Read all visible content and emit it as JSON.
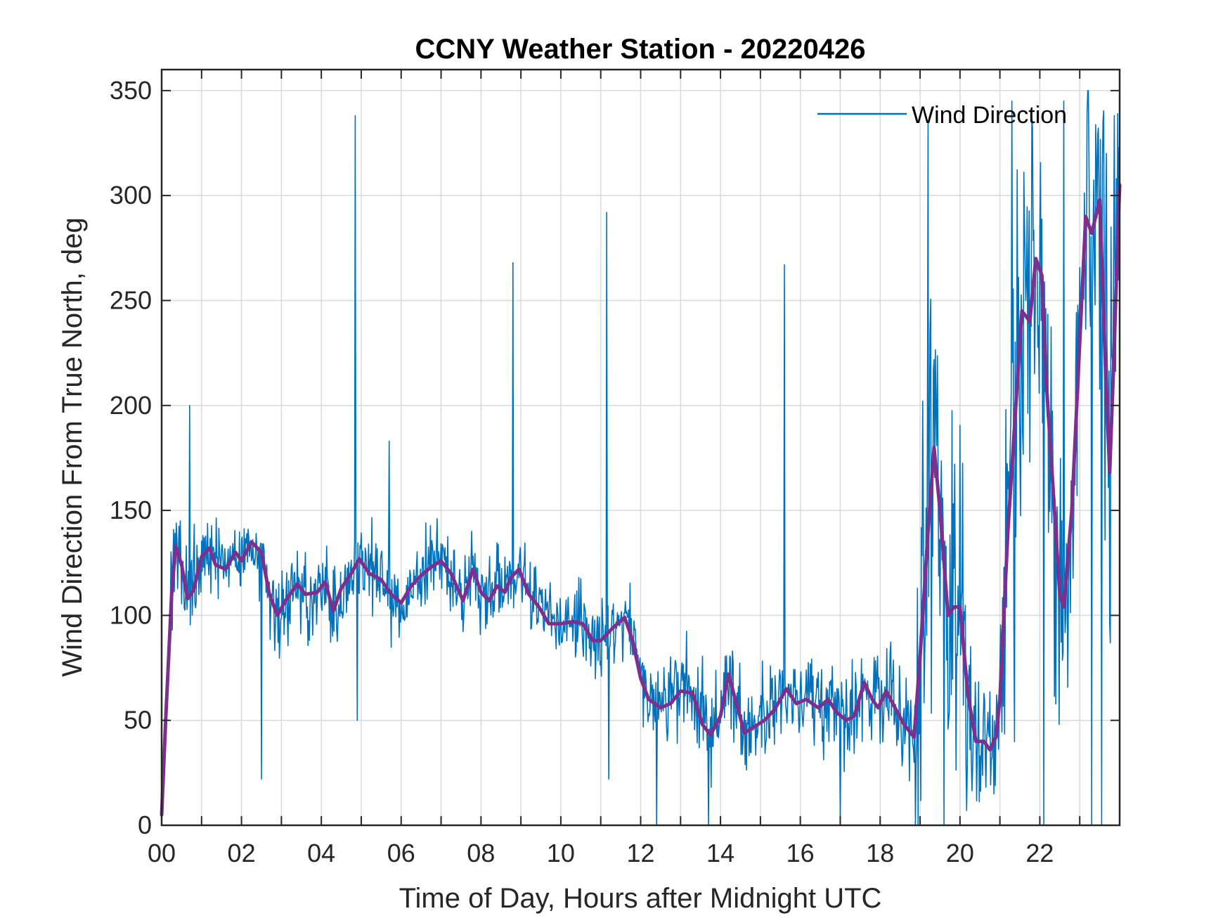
{
  "chart_data": {
    "type": "line",
    "title": "CCNY Weather Station - 20220426",
    "xlabel": "Time of Day, Hours after Midnight UTC",
    "ylabel": "Wind Direction From True North, deg",
    "xlim": [
      0,
      24
    ],
    "ylim": [
      0,
      360
    ],
    "grid": true,
    "legend_position": "top-right",
    "colors": {
      "raw": "#0072BD",
      "smoothed": "#7E2F8E",
      "axis": "#262626",
      "grid": "#d9d9d9"
    },
    "x_ticks": [
      0,
      2,
      4,
      6,
      8,
      10,
      12,
      14,
      16,
      18,
      20,
      22
    ],
    "x_tick_labels": [
      "00",
      "02",
      "04",
      "06",
      "08",
      "10",
      "12",
      "14",
      "16",
      "18",
      "20",
      "22"
    ],
    "y_ticks": [
      0,
      50,
      100,
      150,
      200,
      250,
      300,
      350
    ],
    "y_tick_labels": [
      "0",
      "50",
      "100",
      "150",
      "200",
      "250",
      "300",
      "350"
    ],
    "series": [
      {
        "name": "Wind Direction",
        "in_legend": true,
        "style": "raw-1min",
        "noise_band": [
          [
            0,
            10
          ],
          [
            0.3,
            20
          ],
          [
            0.5,
            22
          ],
          [
            1,
            18
          ],
          [
            2,
            15
          ],
          [
            3,
            18
          ],
          [
            4,
            18
          ],
          [
            5,
            18
          ],
          [
            6,
            15
          ],
          [
            7,
            15
          ],
          [
            8,
            16
          ],
          [
            9,
            15
          ],
          [
            10,
            14
          ],
          [
            11,
            15
          ],
          [
            12,
            15
          ],
          [
            13,
            20
          ],
          [
            14,
            20
          ],
          [
            15,
            18
          ],
          [
            16,
            18
          ],
          [
            17,
            18
          ],
          [
            18,
            18
          ],
          [
            18.85,
            20
          ],
          [
            19,
            90
          ],
          [
            20,
            70
          ],
          [
            20.5,
            20
          ],
          [
            21,
            30
          ],
          [
            21.3,
            90
          ],
          [
            22,
            110
          ],
          [
            22.5,
            60
          ],
          [
            23,
            50
          ],
          [
            23.5,
            110
          ],
          [
            24,
            60
          ]
        ],
        "spikes": [
          [
            0.7,
            200
          ],
          [
            2.5,
            22
          ],
          [
            4.85,
            338
          ],
          [
            4.9,
            50
          ],
          [
            5.7,
            183
          ],
          [
            8.8,
            268
          ],
          [
            11.15,
            292
          ],
          [
            11.2,
            22
          ],
          [
            12.4,
            0
          ],
          [
            13.7,
            0
          ],
          [
            15.6,
            267
          ],
          [
            17,
            0
          ],
          [
            19.2,
            335
          ],
          [
            19.6,
            0
          ],
          [
            21.3,
            345
          ],
          [
            22.1,
            0
          ],
          [
            22.6,
            345
          ],
          [
            23.3,
            0
          ],
          [
            23.55,
            0
          ],
          [
            23.95,
            339
          ]
        ]
      },
      {
        "name": "Smoothed Wind Direction",
        "in_legend": false,
        "points": [
          [
            0,
            5
          ],
          [
            0.1,
            50
          ],
          [
            0.25,
            110
          ],
          [
            0.35,
            133
          ],
          [
            0.5,
            124
          ],
          [
            0.65,
            108
          ],
          [
            0.8,
            112
          ],
          [
            1.0,
            128
          ],
          [
            1.2,
            132
          ],
          [
            1.35,
            124
          ],
          [
            1.6,
            122
          ],
          [
            1.85,
            130
          ],
          [
            2.0,
            126
          ],
          [
            2.25,
            135
          ],
          [
            2.5,
            130
          ],
          [
            2.7,
            110
          ],
          [
            2.9,
            100
          ],
          [
            3.1,
            107
          ],
          [
            3.4,
            115
          ],
          [
            3.6,
            110
          ],
          [
            3.9,
            111
          ],
          [
            4.1,
            116
          ],
          [
            4.3,
            102
          ],
          [
            4.5,
            113
          ],
          [
            4.75,
            120
          ],
          [
            4.95,
            127
          ],
          [
            5.2,
            120
          ],
          [
            5.5,
            117
          ],
          [
            5.75,
            110
          ],
          [
            6.0,
            106
          ],
          [
            6.25,
            114
          ],
          [
            6.5,
            119
          ],
          [
            6.75,
            123
          ],
          [
            7.0,
            126
          ],
          [
            7.25,
            120
          ],
          [
            7.55,
            107
          ],
          [
            7.8,
            122
          ],
          [
            8.0,
            111
          ],
          [
            8.2,
            107
          ],
          [
            8.4,
            114
          ],
          [
            8.6,
            111
          ],
          [
            8.75,
            118
          ],
          [
            8.95,
            122
          ],
          [
            9.2,
            110
          ],
          [
            9.45,
            104
          ],
          [
            9.7,
            96
          ],
          [
            10.0,
            96
          ],
          [
            10.3,
            97
          ],
          [
            10.55,
            96
          ],
          [
            10.8,
            88
          ],
          [
            11.0,
            88
          ],
          [
            11.3,
            94
          ],
          [
            11.6,
            99
          ],
          [
            11.8,
            88
          ],
          [
            12.0,
            70
          ],
          [
            12.2,
            60
          ],
          [
            12.5,
            56
          ],
          [
            12.75,
            58
          ],
          [
            13.0,
            64
          ],
          [
            13.3,
            63
          ],
          [
            13.55,
            48
          ],
          [
            13.75,
            43
          ],
          [
            14.0,
            52
          ],
          [
            14.2,
            72
          ],
          [
            14.4,
            58
          ],
          [
            14.6,
            44
          ],
          [
            14.85,
            47
          ],
          [
            15.1,
            50
          ],
          [
            15.35,
            55
          ],
          [
            15.65,
            65
          ],
          [
            15.9,
            58
          ],
          [
            16.15,
            60
          ],
          [
            16.45,
            56
          ],
          [
            16.7,
            60
          ],
          [
            16.9,
            54
          ],
          [
            17.15,
            50
          ],
          [
            17.35,
            52
          ],
          [
            17.6,
            68
          ],
          [
            17.8,
            60
          ],
          [
            17.95,
            56
          ],
          [
            18.15,
            64
          ],
          [
            18.4,
            55
          ],
          [
            18.6,
            48
          ],
          [
            18.85,
            42
          ],
          [
            19.0,
            80
          ],
          [
            19.2,
            140
          ],
          [
            19.35,
            180
          ],
          [
            19.5,
            150
          ],
          [
            19.7,
            100
          ],
          [
            19.85,
            104
          ],
          [
            20.0,
            104
          ],
          [
            20.2,
            62
          ],
          [
            20.4,
            40
          ],
          [
            20.6,
            40
          ],
          [
            20.75,
            36
          ],
          [
            20.9,
            42
          ],
          [
            21.0,
            60
          ],
          [
            21.2,
            140
          ],
          [
            21.4,
            200
          ],
          [
            21.55,
            245
          ],
          [
            21.75,
            240
          ],
          [
            21.9,
            270
          ],
          [
            22.05,
            262
          ],
          [
            22.15,
            215
          ],
          [
            22.3,
            170
          ],
          [
            22.5,
            110
          ],
          [
            22.6,
            104
          ],
          [
            22.8,
            150
          ],
          [
            23.0,
            230
          ],
          [
            23.15,
            290
          ],
          [
            23.3,
            282
          ],
          [
            23.5,
            298
          ],
          [
            23.65,
            215
          ],
          [
            23.75,
            168
          ],
          [
            23.85,
            220
          ],
          [
            23.95,
            280
          ],
          [
            24.0,
            305
          ]
        ]
      }
    ]
  }
}
